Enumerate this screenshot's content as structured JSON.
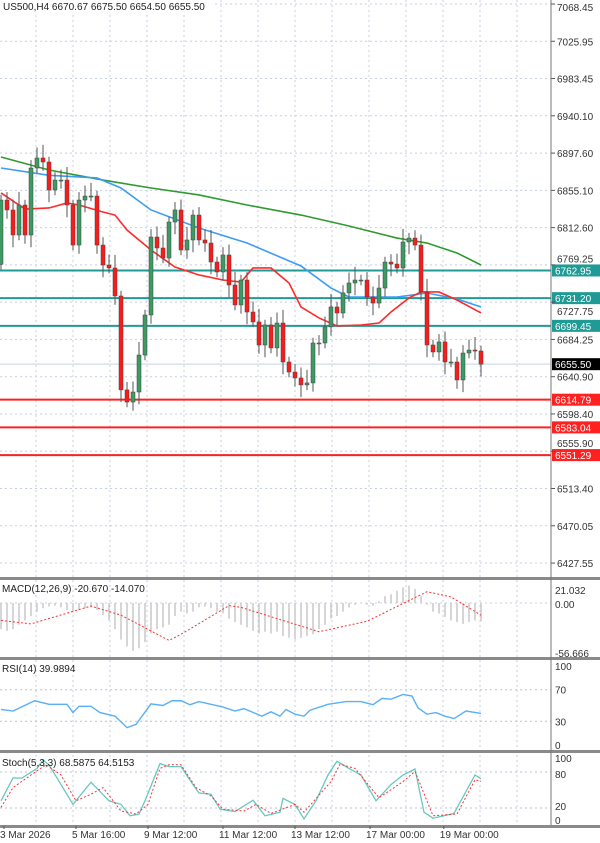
{
  "header": {
    "symbol_text": "US500,H4 6670.67 6675.50 6654.50 6655.50"
  },
  "colors": {
    "bull": "#3c9a62",
    "bear": "#ff1a1a",
    "ma_fast": "#ff2a2a",
    "ma_mid": "#3d9cf5",
    "ma_slow": "#2f9a2f",
    "level_teal": "#1f9a94",
    "level_red": "#ff2020",
    "macd_hist": "#c8c8c8",
    "signal": "#ff3030",
    "rsi": "#5ab0f5",
    "stoch_main": "#66c8c0",
    "stoch_signal": "#ff3030",
    "grid": "#c5cfe0"
  },
  "chart_data": [
    {
      "type": "candlestick",
      "title": "",
      "price_axis_ticks": [
        "7068.45",
        "7025.95",
        "6983.45",
        "6940.10",
        "6897.60",
        "6855.10",
        "6812.60",
        "6769.25",
        "6727.75",
        "6684.25",
        "6640.90",
        "6598.40",
        "6555.90",
        "6513.40",
        "6470.05",
        "6427.55"
      ],
      "ylim": [
        6427.55,
        7068.45
      ],
      "first_open": 6770,
      "closes": [
        6843.7,
        6832.3,
        6803.6,
        6838.0,
        6803.6,
        6880.4,
        6891.9,
        6887.3,
        6855.2,
        6866.6,
        6866.6,
        6838.0,
        6792.1,
        6843.7,
        6848.3,
        6848.3,
        6792.1,
        6769.2,
        6765.8,
        6733.7,
        6626.0,
        6612.1,
        6623.6,
        6666.0,
        6711.9,
        6801.3,
        6788.7,
        6777.2,
        6818.5,
        6832.3,
        6786.4,
        6797.9,
        6826.5,
        6797.9,
        6794.4,
        6772.6,
        6761.2,
        6780.7,
        6746.3,
        6723.4,
        6752.0,
        6715.3,
        6703.9,
        6677.5,
        6700.5,
        6674.1,
        6702.7,
        6658.0,
        6646.5,
        6639.7,
        6631.7,
        6634.0,
        6679.8,
        6679.8,
        6698.2,
        6721.1,
        6714.2,
        6737.2,
        6748.6,
        6752.0,
        6752.0,
        6732.5,
        6725.6,
        6742.8,
        6772.6,
        6770.3,
        6765.8,
        6795.6,
        6800.1,
        6792.1,
        6738.3,
        6677.5,
        6669.5,
        6681.0,
        6658.0,
        6658.0,
        6637.4,
        6668.3,
        6671.7,
        6670.6,
        6655.5
      ],
      "moving_averages": [
        {
          "color_key": "ma_slow",
          "points": [
            [
              0,
              6893.0
            ],
            [
              8,
              6878.1
            ],
            [
              17,
              6866.6
            ],
            [
              25,
              6857.5
            ],
            [
              33,
              6849.5
            ],
            [
              41,
              6838.0
            ],
            [
              50,
              6826.5
            ],
            [
              58,
              6813.9
            ],
            [
              66,
              6800.1
            ],
            [
              71,
              6794.4
            ],
            [
              76,
              6783.0
            ],
            [
              80,
              6769.2
            ]
          ]
        },
        {
          "color_key": "ma_mid",
          "points": [
            [
              0,
              6880.4
            ],
            [
              8,
              6872
            ],
            [
              16,
              6869
            ],
            [
              20,
              6857.5
            ],
            [
              25,
              6832.3
            ],
            [
              33,
              6811.6
            ],
            [
              41,
              6794.4
            ],
            [
              50,
              6768.1
            ],
            [
              55,
              6742.8
            ],
            [
              58,
              6732.5
            ],
            [
              66,
              6732.5
            ],
            [
              71,
              6737.1
            ],
            [
              76,
              6730.3
            ],
            [
              80,
              6721.1
            ]
          ]
        },
        {
          "color_key": "ma_fast",
          "points": [
            [
              0,
              6851.8
            ],
            [
              4,
              6833.4
            ],
            [
              8,
              6834.6
            ],
            [
              11,
              6840.3
            ],
            [
              13,
              6838
            ],
            [
              17,
              6830
            ],
            [
              19,
              6826.5
            ],
            [
              21,
              6809.3
            ],
            [
              25,
              6786.4
            ],
            [
              29,
              6766.9
            ],
            [
              33,
              6757.8
            ],
            [
              37,
              6752.0
            ],
            [
              40,
              6749.7
            ],
            [
              42,
              6765.8
            ],
            [
              45,
              6765.8
            ],
            [
              48,
              6748.6
            ],
            [
              50,
              6721.1
            ],
            [
              53,
              6708.5
            ],
            [
              56,
              6699.3
            ],
            [
              60,
              6700.4
            ],
            [
              63,
              6702.7
            ],
            [
              65,
              6715.3
            ],
            [
              68,
              6731.4
            ],
            [
              70,
              6738.3
            ],
            [
              73,
              6738.3
            ],
            [
              76,
              6729.1
            ],
            [
              80,
              6714.2
            ]
          ]
        }
      ],
      "levels": [
        {
          "price": 6762.95,
          "label": "6762.95",
          "color_key": "level_teal"
        },
        {
          "price": 6731.2,
          "label": "6731.20",
          "color_key": "level_teal"
        },
        {
          "price": 6699.45,
          "label": "6699.45",
          "color_key": "level_teal"
        },
        {
          "price": 6614.79,
          "label": "6614.79",
          "color_key": "level_red"
        },
        {
          "price": 6583.04,
          "label": "6583.04",
          "color_key": "level_red"
        },
        {
          "price": 6551.29,
          "label": "6551.29",
          "color_key": "level_red"
        }
      ],
      "current_price": {
        "price": 6655.5,
        "label": "6655.50"
      }
    },
    {
      "type": "bar+line",
      "label": "MACD(12,26,9) -20.670 -14.070",
      "axis_ticks": [
        "21.032",
        "0.00",
        "-56.666"
      ],
      "histogram": [
        -30,
        -32,
        -30,
        -25,
        -20,
        -15,
        -10,
        -6,
        -4,
        -3,
        -5,
        -8,
        -10,
        -8,
        -6,
        -5,
        -8,
        -14,
        -20,
        -30,
        -42,
        -50,
        -55,
        -52,
        -45,
        -35,
        -30,
        -28,
        -25,
        -15,
        -10,
        -12,
        -10,
        -5,
        -4,
        -6,
        -10,
        -12,
        -18,
        -22,
        -25,
        -28,
        -32,
        -35,
        -33,
        -35,
        -33,
        -38,
        -40,
        -42,
        -40,
        -38,
        -36,
        -30,
        -25,
        -18,
        -15,
        -10,
        -5,
        -2,
        0,
        -2,
        -3,
        2,
        8,
        10,
        14,
        18,
        20,
        16,
        8,
        -2,
        -10,
        -12,
        -16,
        -20,
        -22,
        -24,
        -22,
        -20,
        -21
      ],
      "signal": [
        [
          0,
          -20
        ],
        [
          5,
          -24
        ],
        [
          15,
          -3.5
        ],
        [
          20,
          -14
        ],
        [
          28,
          -43
        ],
        [
          30,
          -36
        ],
        [
          38,
          -3
        ],
        [
          40,
          -5
        ],
        [
          53,
          -33
        ],
        [
          61,
          -21
        ],
        [
          71,
          13
        ],
        [
          75,
          7
        ],
        [
          80,
          -14
        ]
      ]
    },
    {
      "type": "line",
      "label": "RSI(14) 39.9894",
      "axis_ticks": [
        "100",
        "70",
        "30",
        "0"
      ],
      "ylim": [
        0,
        100
      ],
      "values": [
        [
          0,
          45
        ],
        [
          2,
          43
        ],
        [
          5.6,
          56
        ],
        [
          8,
          51.5
        ],
        [
          11,
          51.5
        ],
        [
          12,
          41
        ],
        [
          13,
          49
        ],
        [
          15,
          49
        ],
        [
          16.5,
          41
        ],
        [
          19,
          36.5
        ],
        [
          21,
          22
        ],
        [
          22.5,
          26
        ],
        [
          25,
          52
        ],
        [
          27,
          50
        ],
        [
          28.5,
          56
        ],
        [
          30,
          56
        ],
        [
          31.5,
          51
        ],
        [
          33,
          55
        ],
        [
          37,
          48
        ],
        [
          39,
          43
        ],
        [
          40.5,
          46
        ],
        [
          43.5,
          36.5
        ],
        [
          45,
          42
        ],
        [
          46.5,
          36.5
        ],
        [
          47.5,
          45
        ],
        [
          49,
          39
        ],
        [
          50.5,
          36.5
        ],
        [
          51.5,
          44
        ],
        [
          54.5,
          51.5
        ],
        [
          57.5,
          55
        ],
        [
          60,
          55
        ],
        [
          62,
          51
        ],
        [
          63.5,
          59
        ],
        [
          65,
          58
        ],
        [
          67,
          64
        ],
        [
          68.5,
          62
        ],
        [
          69.5,
          47
        ],
        [
          71,
          39
        ],
        [
          72.5,
          41
        ],
        [
          74,
          36.5
        ],
        [
          75.5,
          33.5
        ],
        [
          77.5,
          43
        ],
        [
          80,
          40
        ]
      ]
    },
    {
      "type": "line",
      "label": "Stoch(5,3,3) 68.5875 64.5153",
      "axis_ticks": [
        "100",
        "80",
        "20",
        "0"
      ],
      "ylim": [
        0,
        100
      ],
      "main": [
        [
          0,
          32
        ],
        [
          2,
          70
        ],
        [
          3.5,
          70
        ],
        [
          6,
          86
        ],
        [
          7,
          100
        ],
        [
          8,
          92
        ],
        [
          10,
          59
        ],
        [
          12,
          26
        ],
        [
          15,
          63
        ],
        [
          18,
          32
        ],
        [
          20,
          26
        ],
        [
          21.5,
          7
        ],
        [
          23,
          10
        ],
        [
          24,
          32
        ],
        [
          26.5,
          94
        ],
        [
          28,
          89
        ],
        [
          30,
          89
        ],
        [
          32,
          59
        ],
        [
          33,
          45
        ],
        [
          35,
          43
        ],
        [
          36.5,
          18
        ],
        [
          39,
          14
        ],
        [
          42,
          33
        ],
        [
          44,
          7
        ],
        [
          46.5,
          13
        ],
        [
          47,
          36
        ],
        [
          49,
          26
        ],
        [
          50.5,
          2
        ],
        [
          52.5,
          32
        ],
        [
          54.5,
          75
        ],
        [
          56,
          98
        ],
        [
          58,
          86
        ],
        [
          60,
          75
        ],
        [
          62.5,
          32
        ],
        [
          65,
          59
        ],
        [
          67,
          75
        ],
        [
          69,
          85
        ],
        [
          70.5,
          13
        ],
        [
          72,
          3
        ],
        [
          75.5,
          11
        ],
        [
          79,
          75
        ],
        [
          80,
          68.6
        ]
      ],
      "signal": [
        [
          0,
          21
        ],
        [
          2,
          54
        ],
        [
          5,
          75
        ],
        [
          7.5,
          92
        ],
        [
          10,
          75
        ],
        [
          12.5,
          32
        ],
        [
          15,
          43
        ],
        [
          17,
          54
        ],
        [
          20,
          15
        ],
        [
          22.5,
          10
        ],
        [
          24.5,
          26
        ],
        [
          26.5,
          86
        ],
        [
          28,
          92
        ],
        [
          30,
          92
        ],
        [
          32.5,
          54
        ],
        [
          35,
          40
        ],
        [
          37,
          18
        ],
        [
          40.5,
          15
        ],
        [
          42.5,
          26
        ],
        [
          45,
          11
        ],
        [
          49,
          26
        ],
        [
          50.5,
          13
        ],
        [
          55,
          64
        ],
        [
          56.5,
          93
        ],
        [
          59,
          86
        ],
        [
          63,
          37
        ],
        [
          67,
          64
        ],
        [
          69,
          81
        ],
        [
          72,
          7
        ],
        [
          76,
          10
        ],
        [
          79,
          67
        ],
        [
          80,
          64.5
        ]
      ]
    }
  ],
  "time_axis": [
    {
      "bar": 0.5,
      "text": "3 Mar 2026"
    },
    {
      "bar": 12.5,
      "text": "5 Mar 16:00"
    },
    {
      "bar": 24.5,
      "text": "9 Mar 12:00"
    },
    {
      "bar": 37,
      "text": "11 Mar 12:00"
    },
    {
      "bar": 49,
      "text": "13 Mar 12:00"
    },
    {
      "bar": 61.5,
      "text": "17 Mar 00:00"
    },
    {
      "bar": 73.8,
      "text": "19 Mar 00:00"
    }
  ]
}
